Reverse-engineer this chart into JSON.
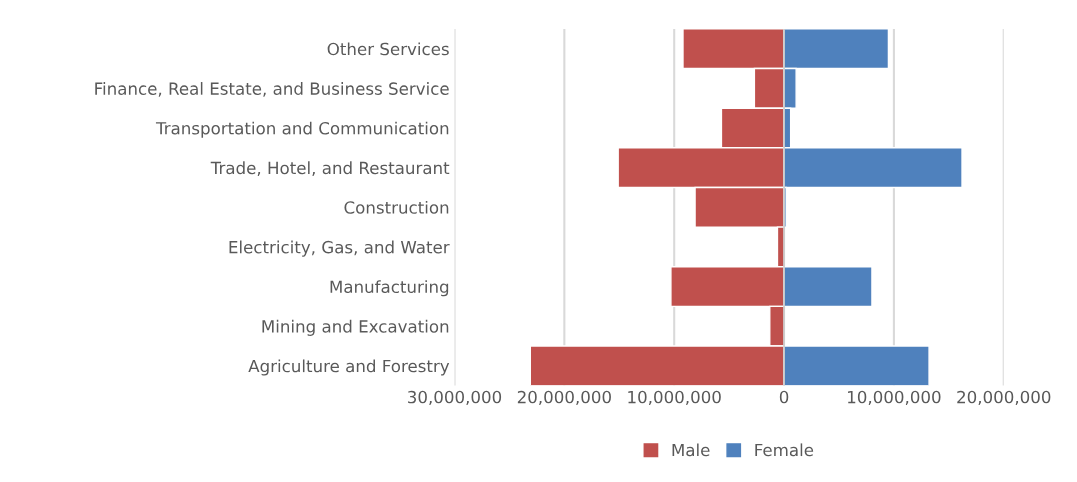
{
  "chart_data": {
    "type": "bar",
    "orientation": "horizontal",
    "stacked": true,
    "categories": [
      "Other Services",
      "Finance, Real Estate, and Business Service",
      "Transportation and Communication",
      "Trade, Hotel, and Restaurant",
      "Construction",
      "Electricity, Gas, and Water",
      "Manufacturing",
      "Mining and Excavation",
      "Agriculture and Forestry"
    ],
    "series": [
      {
        "name": "Male",
        "color": "#c0504d",
        "values": [
          -9200000,
          -2700000,
          -5700000,
          -15100000,
          -8100000,
          -600000,
          -10300000,
          -1300000,
          -23100000
        ]
      },
      {
        "name": "Female",
        "color": "#4f81bd",
        "values": [
          9500000,
          1100000,
          600000,
          16200000,
          200000,
          null,
          8000000,
          null,
          13200000
        ]
      }
    ],
    "xlim": [
      -30000000,
      20000000
    ],
    "xticks": [
      {
        "value": -30000000,
        "label": "30,000,000"
      },
      {
        "value": -20000000,
        "label": "20,000,000"
      },
      {
        "value": -10000000,
        "label": "10,000,000"
      },
      0,
      {
        "value": 10000000,
        "label": "10,000,000"
      },
      {
        "value": 20000000,
        "label": "20,000,000"
      }
    ],
    "grid": "x",
    "legend": "bottom"
  }
}
